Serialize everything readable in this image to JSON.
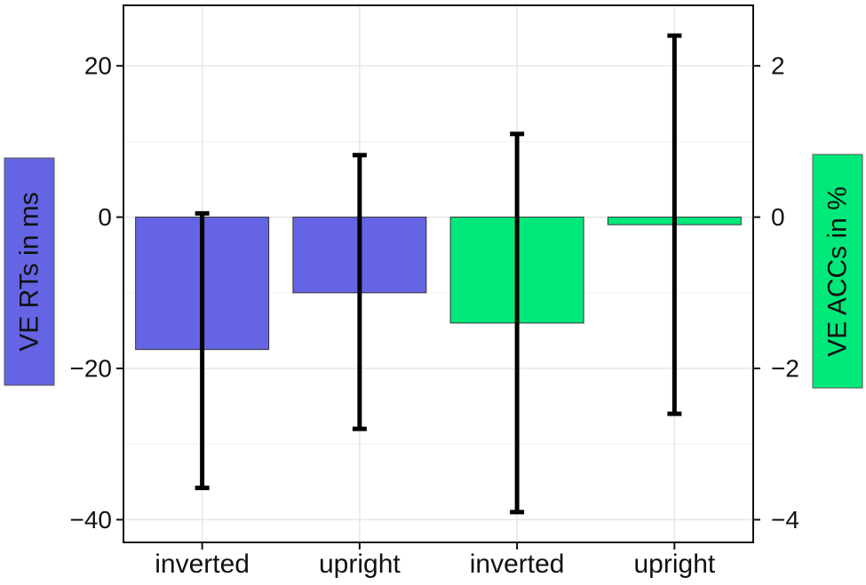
{
  "chart_data": {
    "type": "bar",
    "categories": [
      "inverted",
      "upright",
      "inverted",
      "upright"
    ],
    "series": [
      {
        "axis": "left",
        "color": "#6464e4",
        "values": [
          -17.5,
          -10,
          null,
          null
        ],
        "error_low": [
          -35.8,
          -28.0,
          null,
          null
        ],
        "error_high": [
          0.5,
          8.2,
          null,
          null
        ]
      },
      {
        "axis": "right",
        "color": "#00e87a",
        "values": [
          null,
          null,
          -1.4,
          -0.1
        ],
        "error_low": [
          null,
          null,
          -3.9,
          -2.6
        ],
        "error_high": [
          null,
          null,
          1.1,
          2.4
        ]
      }
    ],
    "ylabel": "VE RTs in ms",
    "ylabel_right": "VE ACCs in %",
    "ylim": [
      -43,
      28
    ],
    "ylim_right": [
      -4.3,
      2.8
    ],
    "yticks": [
      -40,
      -20,
      0,
      20
    ],
    "yticks_right": [
      -4,
      -2,
      0,
      2
    ],
    "ytick_labels": [
      "−40",
      "−20",
      "0",
      "20"
    ],
    "ytick_labels_right": [
      "−4",
      "−2",
      "0",
      "2"
    ],
    "grid": true,
    "ylabel_box_color": "#6464e4",
    "ylabel_right_box_color": "#00e87a"
  }
}
